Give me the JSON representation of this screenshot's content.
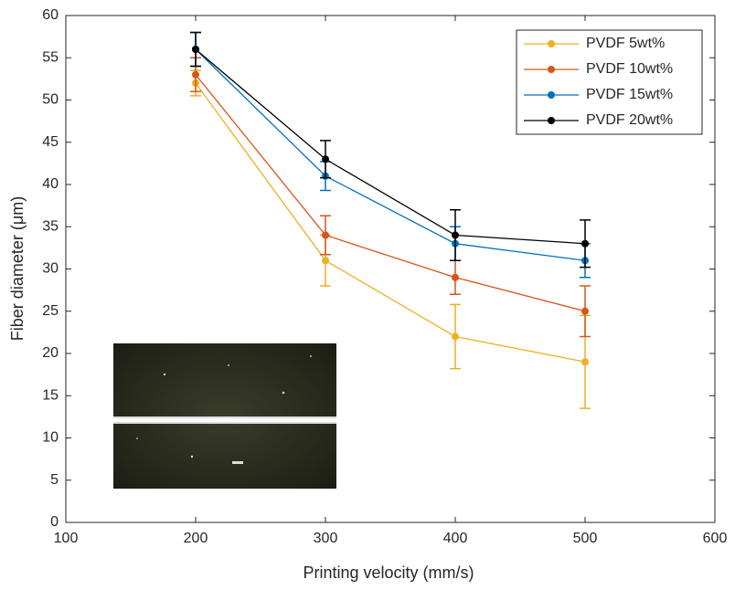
{
  "chart_data": {
    "type": "line",
    "x_label": "Printing velocity (mm/s)",
    "y_label": "Fiber diameter (μm)",
    "x": [
      200,
      300,
      400,
      500
    ],
    "series": [
      {
        "name": "PVDF 5wt%",
        "color": "#EDB120",
        "values": [
          52,
          31,
          22,
          19
        ],
        "errors": [
          1.5,
          3,
          3.8,
          5.5
        ]
      },
      {
        "name": "PVDF 10wt%",
        "color": "#D95319",
        "values": [
          53,
          34,
          29,
          25
        ],
        "errors": [
          2,
          2.3,
          2,
          3
        ]
      },
      {
        "name": "PVDF 15wt%",
        "color": "#0072BD",
        "values": [
          56,
          41,
          33,
          31
        ],
        "errors": [
          2,
          1.7,
          2,
          2
        ]
      },
      {
        "name": "PVDF 20wt%",
        "color": "#000000",
        "values": [
          56,
          43,
          34,
          33
        ],
        "errors": [
          2,
          2.2,
          3,
          2.8
        ]
      }
    ],
    "xlim": [
      100,
      600
    ],
    "xticks": [
      100,
      200,
      300,
      400,
      500,
      600
    ],
    "ylim": [
      0,
      60
    ],
    "yticks": [
      0,
      5,
      10,
      15,
      20,
      25,
      30,
      35,
      40,
      45,
      50,
      55,
      60
    ],
    "legend": "upper right"
  }
}
